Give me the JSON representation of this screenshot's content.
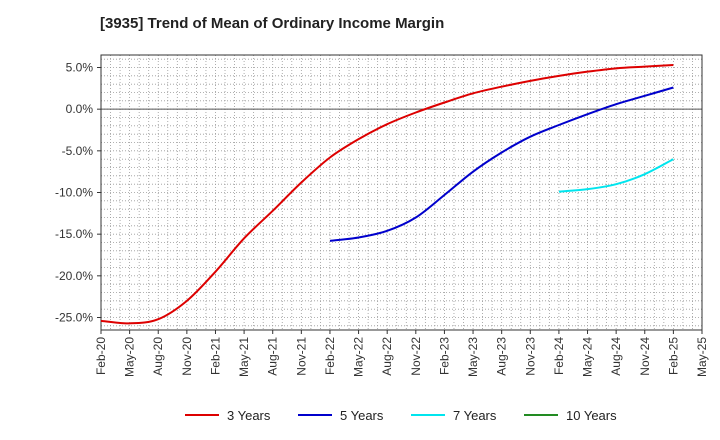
{
  "title": "[3935]  Trend of Mean of Ordinary Income Margin",
  "chart_data": {
    "type": "line",
    "title": "[3935]  Trend of Mean of Ordinary Income Margin",
    "xlabel": "",
    "ylabel": "",
    "ylim": [
      -26.5,
      6.5
    ],
    "y_ticks": [
      5.0,
      0.0,
      -5.0,
      -10.0,
      -15.0,
      -20.0,
      -25.0
    ],
    "y_tick_labels": [
      "5.0%",
      "0.0%",
      "-5.0%",
      "-10.0%",
      "-15.0%",
      "-20.0%",
      "-25.0%"
    ],
    "x_ticks": [
      "Feb-20",
      "May-20",
      "Aug-20",
      "Nov-20",
      "Feb-21",
      "May-21",
      "Aug-21",
      "Nov-21",
      "Feb-22",
      "May-22",
      "Aug-22",
      "Nov-22",
      "Feb-23",
      "May-23",
      "Aug-23",
      "Nov-23",
      "Feb-24",
      "May-24",
      "Aug-24",
      "Nov-24",
      "Feb-25",
      "May-25"
    ],
    "grid": true,
    "legend_position": "bottom",
    "series": [
      {
        "name": "3 Years",
        "color": "#dd0000",
        "x": [
          "Feb-20",
          "May-20",
          "Aug-20",
          "Nov-20",
          "Feb-21",
          "May-21",
          "Aug-21",
          "Nov-21",
          "Feb-22",
          "May-22",
          "Aug-22",
          "Nov-22",
          "Feb-23",
          "May-23",
          "Aug-23",
          "Nov-23",
          "Feb-24",
          "May-24",
          "Aug-24",
          "Nov-24",
          "Feb-25"
        ],
        "values": [
          -25.4,
          -25.7,
          -25.2,
          -23.0,
          -19.5,
          -15.5,
          -12.2,
          -8.8,
          -5.8,
          -3.6,
          -1.8,
          -0.4,
          0.8,
          1.9,
          2.7,
          3.4,
          4.0,
          4.5,
          4.9,
          5.1,
          5.3
        ]
      },
      {
        "name": "5 Years",
        "color": "#0000cc",
        "x": [
          "Feb-22",
          "May-22",
          "Aug-22",
          "Nov-22",
          "Feb-23",
          "May-23",
          "Aug-23",
          "Nov-23",
          "Feb-24",
          "May-24",
          "Aug-24",
          "Nov-24",
          "Feb-25"
        ],
        "values": [
          -15.8,
          -15.4,
          -14.6,
          -13.0,
          -10.3,
          -7.5,
          -5.2,
          -3.3,
          -1.9,
          -0.6,
          0.6,
          1.6,
          2.6
        ]
      },
      {
        "name": "7 Years",
        "color": "#00e5ee",
        "x": [
          "Feb-24",
          "May-24",
          "Aug-24",
          "Nov-24",
          "Feb-25"
        ],
        "values": [
          -9.9,
          -9.6,
          -9.0,
          -7.8,
          -6.0
        ]
      },
      {
        "name": "10 Years",
        "color": "#228b22",
        "x": [],
        "values": []
      }
    ]
  }
}
